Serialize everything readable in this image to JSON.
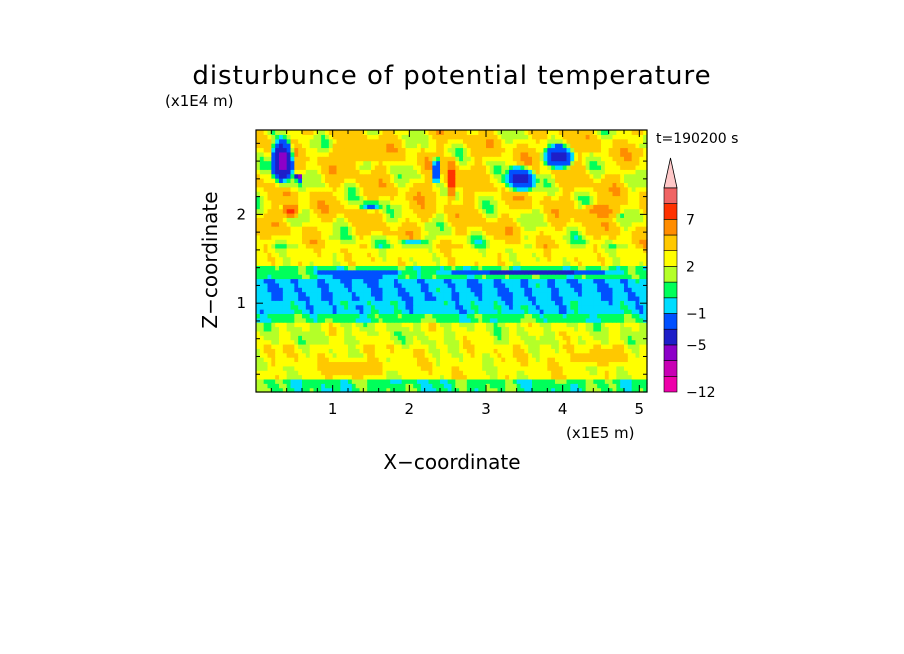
{
  "chart_data": {
    "type": "heatmap",
    "title": "disturbunce of potential temperature",
    "xlabel": "X−coordinate",
    "ylabel": "Z−coordinate",
    "x_unit": "(x1E5 m)",
    "y_unit": "(x1E4 m)",
    "time_label": "t=190200 s",
    "xlim": [
      0,
      5.1
    ],
    "ylim": [
      0,
      2.95
    ],
    "x_ticks": [
      1,
      2,
      3,
      4,
      5
    ],
    "y_ticks": [
      1,
      2
    ],
    "x_tick_labels": [
      "1",
      "2",
      "3",
      "4",
      "5"
    ],
    "y_tick_labels": [
      "1",
      "2"
    ],
    "colorbar": {
      "levels": [
        -12,
        -9,
        -7,
        -5,
        -3,
        -1,
        0,
        1,
        2,
        3,
        5,
        7,
        9,
        11
      ],
      "colors": [
        "#ee00aa",
        "#c800b4",
        "#8c00c8",
        "#1e1ec8",
        "#0050ff",
        "#00ddff",
        "#00ff5a",
        "#b4ff28",
        "#ffff00",
        "#ffc800",
        "#ff8c00",
        "#ff3200",
        "#f06464",
        "#ffc8c8"
      ],
      "labels": [
        "−12",
        "−5",
        "−1",
        "2",
        "7"
      ],
      "extend": "max"
    },
    "bands": [
      {
        "z_from": 0.0,
        "z_to": 0.15,
        "value": 0.5
      },
      {
        "z_from": 0.15,
        "z_to": 0.55,
        "value": 2.5
      },
      {
        "z_from": 0.55,
        "z_to": 0.8,
        "value": 2.0
      },
      {
        "z_from": 0.8,
        "z_to": 0.9,
        "value": 0.5
      },
      {
        "z_from": 0.9,
        "z_to": 1.05,
        "value": -0.5
      },
      {
        "z_from": 1.05,
        "z_to": 1.3,
        "value": -0.8
      },
      {
        "z_from": 1.3,
        "z_to": 1.45,
        "value": 0.5
      },
      {
        "z_from": 1.45,
        "z_to": 1.75,
        "value": 2.5
      },
      {
        "z_from": 1.75,
        "z_to": 2.95,
        "value": 3.0
      }
    ],
    "features": [
      {
        "x": 1.35,
        "z": 1.33,
        "rx": 0.8,
        "rz": 0.04,
        "value": -4
      },
      {
        "x": 3.55,
        "z": 1.36,
        "rx": 1.3,
        "rz": 0.035,
        "value": -4
      },
      {
        "x": 0.35,
        "z": 2.6,
        "rx": 0.18,
        "rz": 0.33,
        "value": -6
      },
      {
        "x": 0.55,
        "z": 2.4,
        "rx": 0.07,
        "rz": 0.08,
        "value": -9
      },
      {
        "x": 0.45,
        "z": 2.05,
        "rx": 0.14,
        "rz": 0.1,
        "value": 8
      },
      {
        "x": 1.3,
        "z": 2.7,
        "rx": 0.4,
        "rz": 0.15,
        "value": 5
      },
      {
        "x": 3.45,
        "z": 2.4,
        "rx": 0.25,
        "rz": 0.18,
        "value": -4
      },
      {
        "x": 3.95,
        "z": 2.65,
        "rx": 0.25,
        "rz": 0.17,
        "value": -4
      },
      {
        "x": 2.55,
        "z": 2.4,
        "rx": 0.09,
        "rz": 0.28,
        "value": 8
      },
      {
        "x": 2.2,
        "z": 2.15,
        "rx": 0.15,
        "rz": 0.26,
        "value": 5
      },
      {
        "x": 2.35,
        "z": 2.5,
        "rx": 0.05,
        "rz": 0.2,
        "value": -5
      },
      {
        "x": 1.5,
        "z": 2.1,
        "rx": 0.16,
        "rz": 0.07,
        "value": -1.5
      },
      {
        "x": 4.9,
        "z": 2.7,
        "rx": 0.18,
        "rz": 0.1,
        "value": 5
      },
      {
        "x": 4.5,
        "z": 2.05,
        "rx": 0.3,
        "rz": 0.1,
        "value": 6
      },
      {
        "x": 1.3,
        "z": 0.28,
        "rx": 0.6,
        "rz": 0.12,
        "value": 3.5
      },
      {
        "x": 4.4,
        "z": 0.4,
        "rx": 0.45,
        "rz": 0.12,
        "value": 3.5
      },
      {
        "x": 0.5,
        "z": 2.35,
        "rx": 0.15,
        "rz": 0.1,
        "value": 1.5
      },
      {
        "x": 2.05,
        "z": 1.68,
        "rx": 0.25,
        "rz": 0.05,
        "value": -1
      }
    ]
  }
}
